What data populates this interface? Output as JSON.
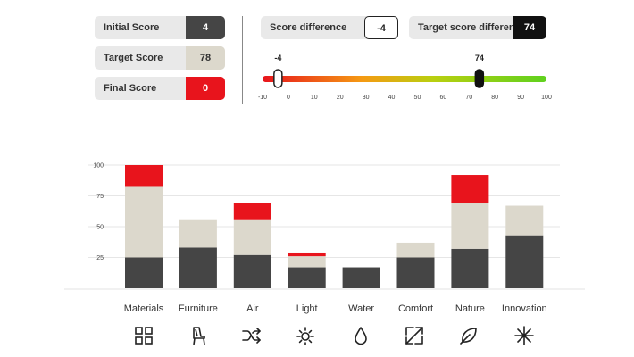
{
  "scores": {
    "initial": {
      "label": "Initial Score",
      "value": "4"
    },
    "target": {
      "label": "Target Score",
      "value": "78"
    },
    "final": {
      "label": "Final Score",
      "value": "0"
    },
    "difference": {
      "label": "Score difference",
      "value": "-4"
    },
    "target_difference": {
      "label": "Target score difference",
      "value": "74"
    }
  },
  "slider": {
    "min": -10,
    "max": 100,
    "ticks": [
      "-10",
      "0",
      "10",
      "20",
      "30",
      "40",
      "50",
      "60",
      "70",
      "80",
      "90",
      "100"
    ],
    "current_value": -4,
    "current_label": "-4",
    "target_value": 74,
    "target_label": "74"
  },
  "chart_data": {
    "type": "bar",
    "categories": [
      "Materials",
      "Furniture",
      "Air",
      "Light",
      "Water",
      "Comfort",
      "Nature",
      "Innovation"
    ],
    "series": [
      {
        "values": [
          25,
          33,
          27,
          17,
          17,
          25,
          32,
          43
        ]
      },
      {
        "values": [
          58,
          23,
          29,
          9,
          0,
          12,
          37,
          24
        ]
      },
      {
        "values": [
          17,
          0,
          13,
          3,
          0,
          0,
          23,
          0
        ]
      }
    ],
    "yticks": [
      "100",
      "75",
      "50",
      "25"
    ],
    "ylim": [
      0,
      100
    ],
    "colors": [
      "#454545",
      "#dcd8cc",
      "#e8141c"
    ],
    "grid": true
  },
  "icons": [
    "grid-icon",
    "chair-icon",
    "shuffle-icon",
    "sun-icon",
    "water-drop-icon",
    "expand-icon",
    "leaf-icon",
    "asterisk-icon"
  ]
}
